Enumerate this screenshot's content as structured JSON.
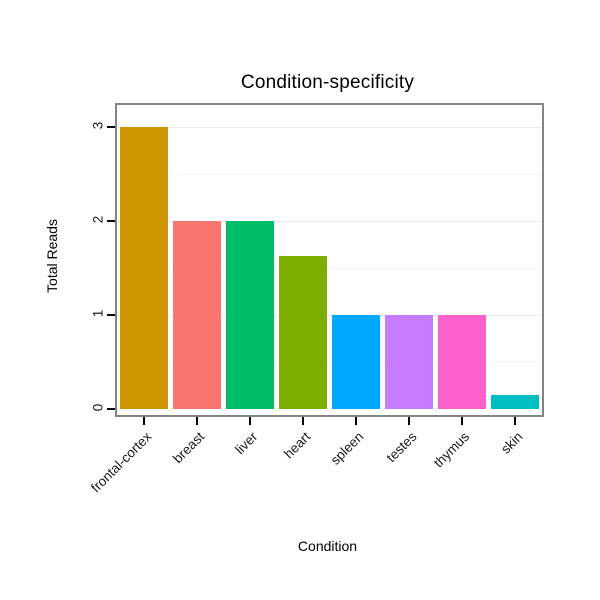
{
  "chart_data": {
    "type": "bar",
    "title": "Condition-specificity",
    "xlabel": "Condition",
    "ylabel": "Total Reads",
    "categories": [
      "frontal-cortex",
      "breast",
      "liver",
      "heart",
      "spleen",
      "testes",
      "thymus",
      "skin"
    ],
    "values": [
      3,
      2,
      2,
      1.63,
      1,
      1,
      1,
      0.15
    ],
    "colors": [
      "#CD9600",
      "#F8766D",
      "#00BE67",
      "#7CAE00",
      "#00A9FF",
      "#C77CFF",
      "#FF61CC",
      "#00BFC4"
    ],
    "ylim": [
      0,
      3
    ],
    "yticks": [
      0,
      1,
      2,
      3
    ],
    "grid": true,
    "legend_position": "none"
  }
}
